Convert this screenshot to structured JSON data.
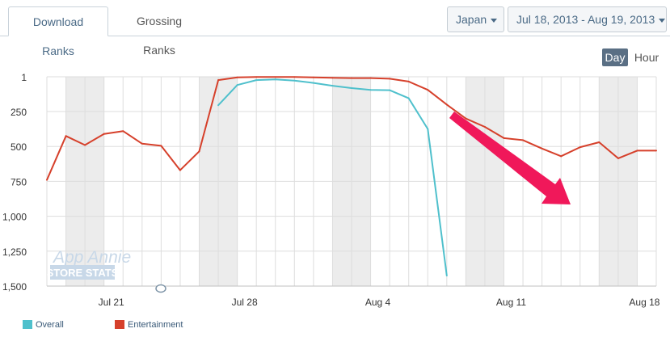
{
  "tabs": {
    "download_ranks": "Download Ranks",
    "grossing_ranks": "Grossing Ranks"
  },
  "filters": {
    "country": "Japan",
    "date_range": "Jul 18, 2013 - Aug 19, 2013"
  },
  "granularity": {
    "day": "Day",
    "hour": "Hour",
    "selected": "Day"
  },
  "watermark": {
    "line1": "App Annie",
    "line2": "STORE STATS"
  },
  "colors": {
    "overall": "#4fc0cc",
    "entertainment": "#d6402b",
    "arrow": "#f0185a",
    "weekend_band": "#ececec",
    "grid": "#dddddd"
  },
  "chart_data": {
    "type": "line",
    "x_start": "2013-07-18",
    "x_labels": [
      "Jul 21",
      "Jul 28",
      "Aug 4",
      "Aug 11",
      "Aug 18"
    ],
    "x_label_day_index": [
      3,
      10,
      17,
      24,
      31
    ],
    "ylim": [
      1,
      1500
    ],
    "y_inverted": true,
    "y_ticks": [
      "1",
      "250",
      "500",
      "750",
      "1,000",
      "1,250",
      "1,500"
    ],
    "y_tick_values": [
      1,
      250,
      500,
      750,
      1000,
      1250,
      1500
    ],
    "weekend_days": [
      [
        1,
        2
      ],
      [
        8,
        9
      ],
      [
        15,
        16
      ],
      [
        22,
        23
      ],
      [
        29,
        30
      ]
    ],
    "series": [
      {
        "name": "Overall",
        "x": [
          9,
          10,
          11,
          12,
          13,
          14,
          15,
          16,
          17,
          18,
          19,
          20,
          21
        ],
        "values": [
          205,
          60,
          25,
          20,
          28,
          45,
          65,
          82,
          95,
          97,
          155,
          375,
          1425
        ]
      },
      {
        "name": "Entertainment",
        "x": [
          0,
          1,
          2,
          3,
          4,
          5,
          6,
          7,
          8,
          9,
          10,
          11,
          12,
          13,
          14,
          15,
          16,
          17,
          18,
          19,
          20,
          21,
          22,
          23,
          24,
          25,
          26,
          27,
          28,
          29,
          30,
          31,
          32
        ],
        "values": [
          740,
          425,
          490,
          410,
          390,
          480,
          495,
          670,
          535,
          25,
          5,
          3,
          3,
          3,
          5,
          8,
          10,
          10,
          15,
          35,
          95,
          200,
          300,
          360,
          440,
          455,
          515,
          570,
          505,
          470,
          585,
          530,
          530
        ]
      }
    ],
    "legend_position": "bottom-left"
  }
}
